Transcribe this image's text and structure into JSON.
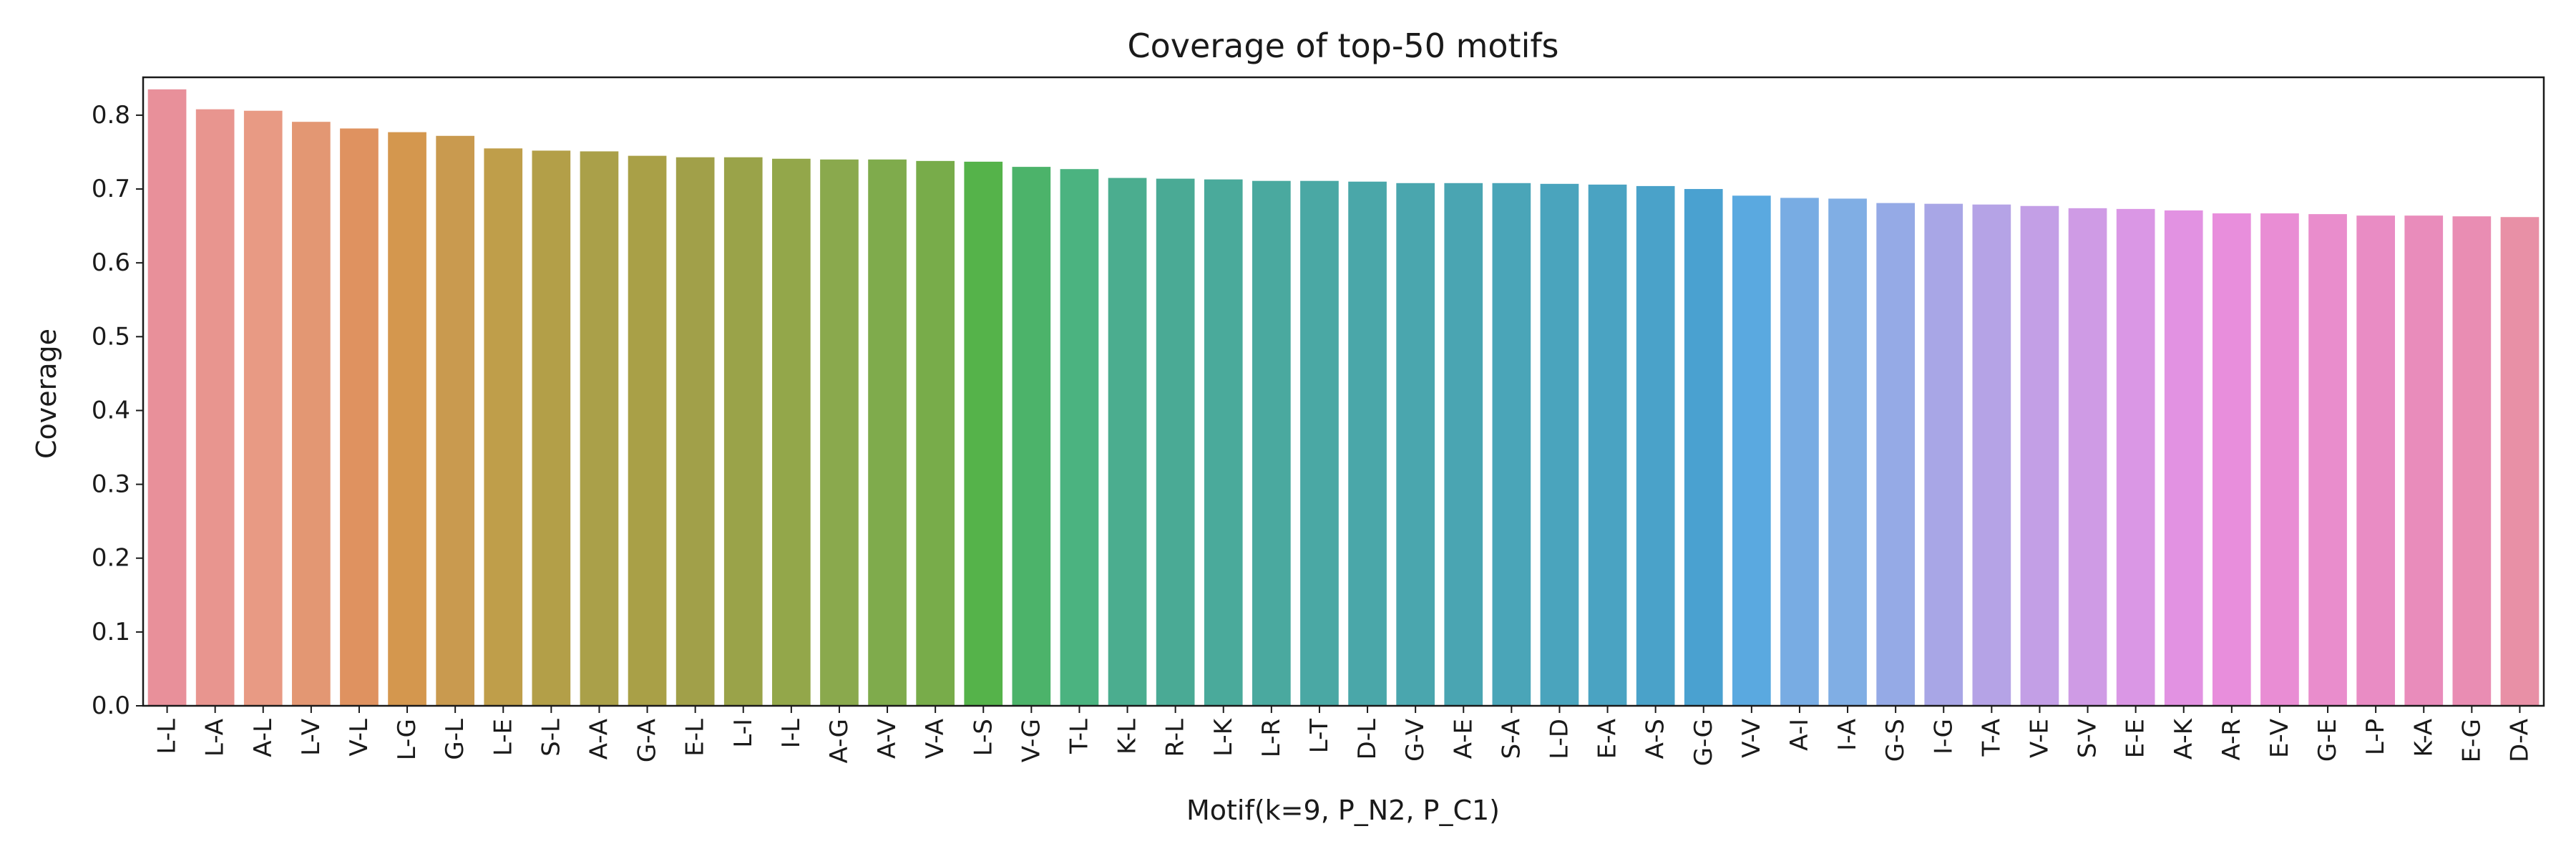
{
  "chart_data": {
    "type": "bar",
    "title": "Coverage of top-50 motifs",
    "xlabel": "Motif(k=9, P_N2, P_C1)",
    "ylabel": "Coverage",
    "ylim": [
      0,
      0.85
    ],
    "yticks": [
      "0.0",
      "0.1",
      "0.2",
      "0.3",
      "0.4",
      "0.5",
      "0.6",
      "0.7",
      "0.8"
    ],
    "grid": false,
    "legend": "none",
    "categories": [
      "L-L",
      "L-A",
      "A-L",
      "L-V",
      "V-L",
      "L-G",
      "G-L",
      "L-E",
      "S-L",
      "A-A",
      "G-A",
      "E-L",
      "L-I",
      "I-L",
      "A-G",
      "A-V",
      "V-A",
      "L-S",
      "V-G",
      "T-L",
      "K-L",
      "R-L",
      "L-K",
      "L-R",
      "L-T",
      "D-L",
      "G-V",
      "A-E",
      "S-A",
      "L-D",
      "E-A",
      "A-S",
      "G-G",
      "V-V",
      "A-I",
      "I-A",
      "G-S",
      "I-G",
      "T-A",
      "V-E",
      "S-V",
      "E-E",
      "A-K",
      "A-R",
      "E-V",
      "G-E",
      "L-P",
      "K-A",
      "E-G",
      "D-A"
    ],
    "values": [
      0.835,
      0.808,
      0.806,
      0.791,
      0.782,
      0.777,
      0.772,
      0.755,
      0.752,
      0.751,
      0.745,
      0.743,
      0.743,
      0.741,
      0.74,
      0.74,
      0.738,
      0.737,
      0.73,
      0.727,
      0.715,
      0.714,
      0.713,
      0.711,
      0.711,
      0.71,
      0.708,
      0.708,
      0.708,
      0.707,
      0.706,
      0.704,
      0.7,
      0.691,
      0.688,
      0.687,
      0.681,
      0.68,
      0.679,
      0.677,
      0.674,
      0.673,
      0.671,
      0.667,
      0.667,
      0.666,
      0.664,
      0.664,
      0.663,
      0.662
    ],
    "colors": [
      "#e8909a",
      "#e8958f",
      "#e89a84",
      "#e39773",
      "#df9260",
      "#d4974e",
      "#c99a4f",
      "#bf9e4a",
      "#b39f48",
      "#aaa049",
      "#a9a047",
      "#a1a049",
      "#9aa349",
      "#93a74a",
      "#8aa94d",
      "#7fab4c",
      "#78ac4a",
      "#55b34a",
      "#4cb36a",
      "#4bb380",
      "#4bad8f",
      "#4aaa95",
      "#4aaa9b",
      "#4aa99f",
      "#4aa8a4",
      "#4aa7a9",
      "#4aa6ae",
      "#4aa5b2",
      "#4aa5b8",
      "#4aa4bd",
      "#4aa3c2",
      "#4aa2c9",
      "#4aa1d0",
      "#5aa9e0",
      "#78ace3",
      "#80aee4",
      "#95aae6",
      "#a8a6e6",
      "#b5a3e6",
      "#c39fe6",
      "#cf9be5",
      "#da97e5",
      "#e292e2",
      "#e88edc",
      "#e98dd4",
      "#e98dcc",
      "#e98cc4",
      "#e98cbb",
      "#e98db3",
      "#e890a6"
    ]
  }
}
